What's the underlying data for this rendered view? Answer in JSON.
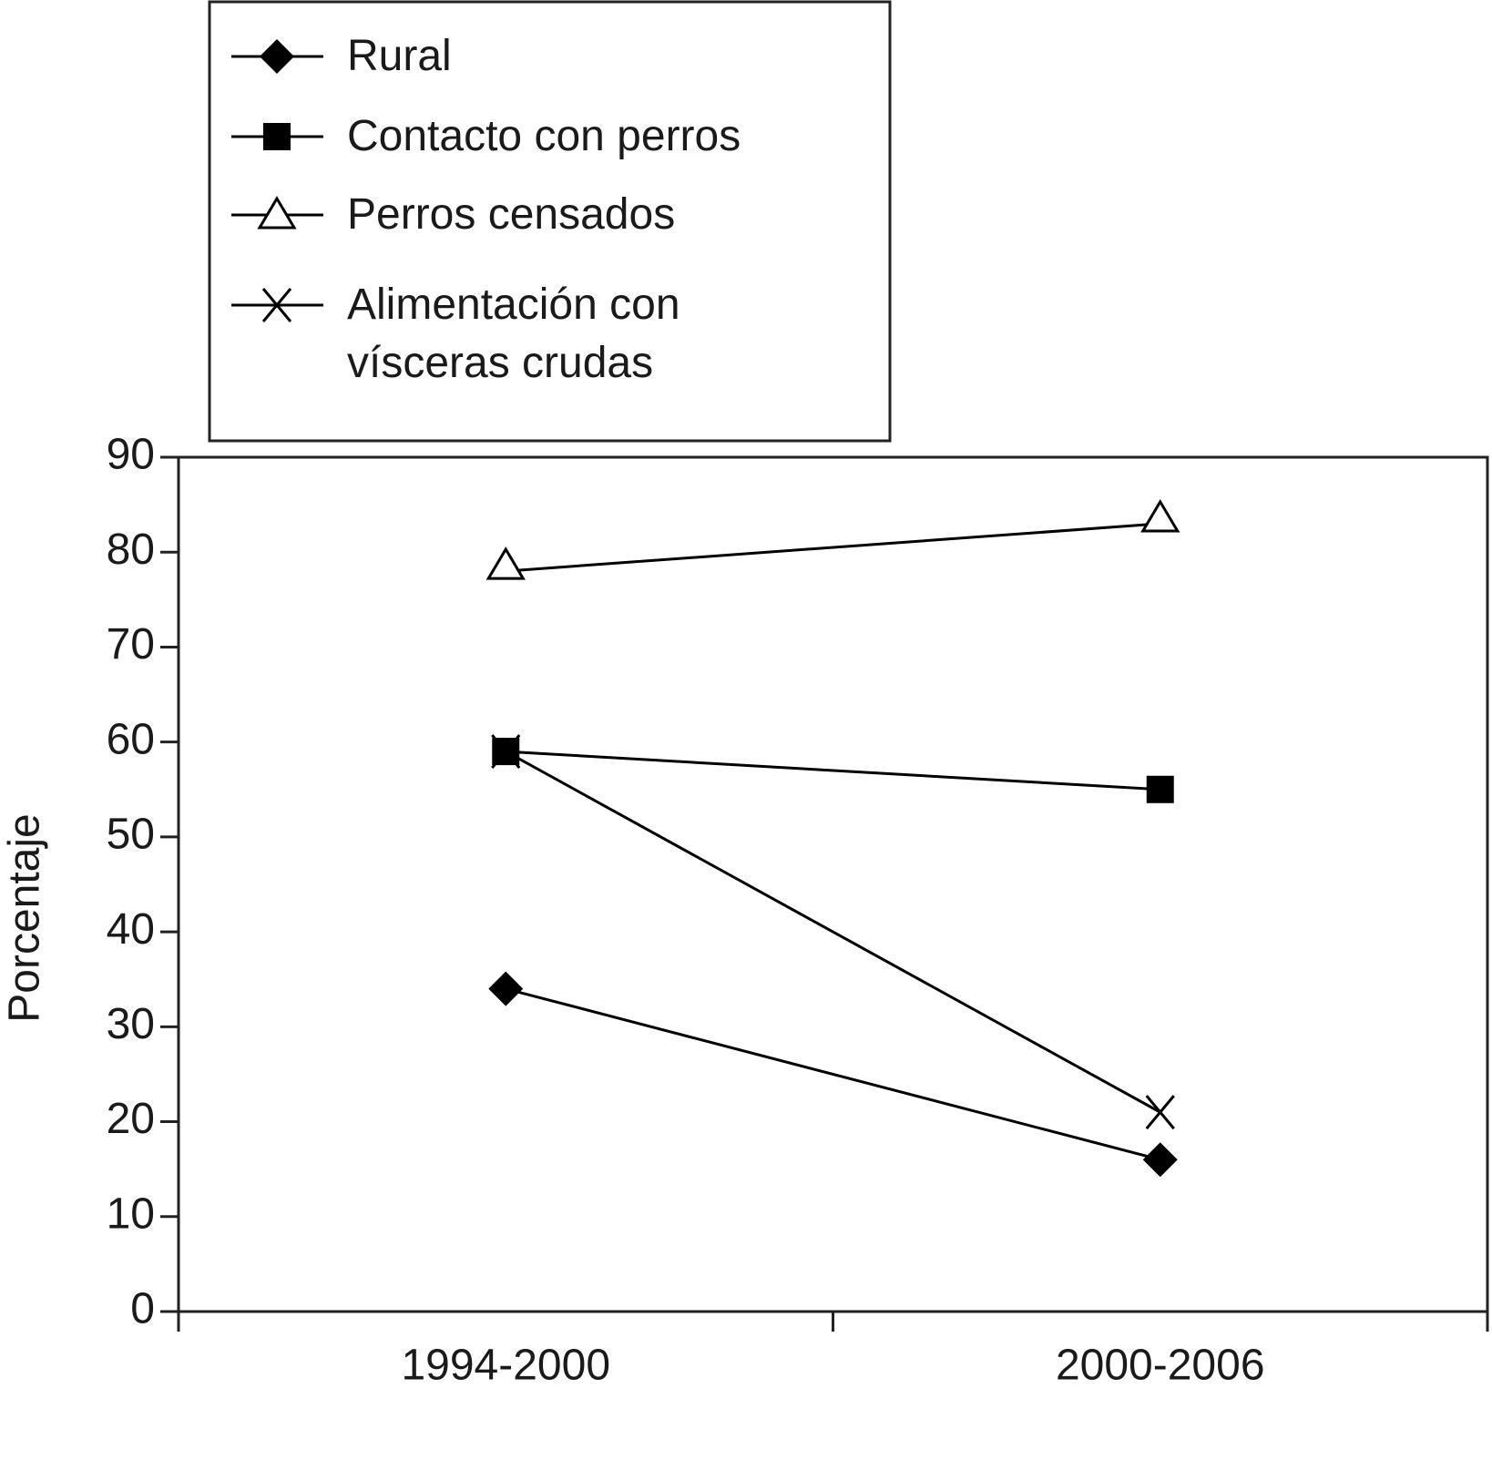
{
  "chart_data": {
    "type": "line",
    "y_label": "Porcentaje",
    "categories": [
      "1994-2000",
      "2000-2006"
    ],
    "ylim": [
      0,
      90
    ],
    "yticks": [
      0,
      10,
      20,
      30,
      40,
      50,
      60,
      70,
      80,
      90
    ],
    "legend": "top-left",
    "series": [
      {
        "name": "Rural",
        "color": "#000000",
        "marker": "diamond",
        "values": [
          34,
          16
        ]
      },
      {
        "name": "Contacto con perros",
        "color": "#000000",
        "marker": "square",
        "values": [
          59,
          55
        ]
      },
      {
        "name": "Perros censados",
        "color": "#000000",
        "marker": "triangle",
        "values": [
          78,
          83
        ]
      },
      {
        "name": "Alimentación con vísceras crudas",
        "color": "#000000",
        "marker": "x",
        "values": [
          59,
          21
        ]
      }
    ]
  }
}
